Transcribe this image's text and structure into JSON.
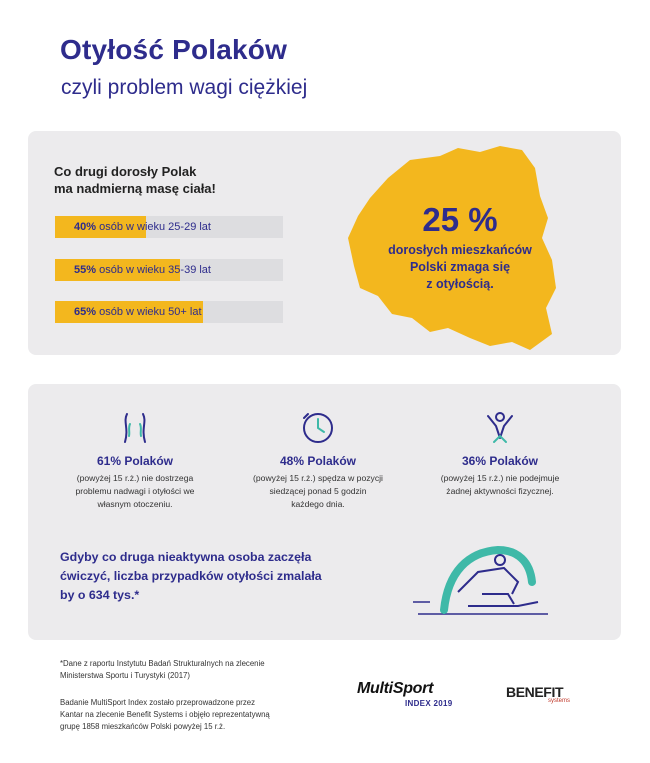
{
  "header": {
    "title": "Otyłość Polaków",
    "subtitle": "czyli problem wagi ciężkiej"
  },
  "top_panel": {
    "lead_line1": "Co drugi dorosły Polak",
    "lead_line2": "ma nadmierną masę ciała!",
    "bars": [
      {
        "percent": "40%",
        "rest": " osób w wieku 25-29 lat",
        "fill_fraction": 0.4
      },
      {
        "percent": "55%",
        "rest": " osób w wieku 35-39 lat",
        "fill_fraction": 0.55
      },
      {
        "percent": "65%",
        "rest": " osób w wieku  50+ lat",
        "fill_fraction": 0.65
      }
    ],
    "highlight_value": "25 %",
    "highlight_line1": "dorosłych mieszkańców",
    "highlight_line2": "Polski zmaga się",
    "highlight_line3": "z otyłością."
  },
  "stats": [
    {
      "icon": "body-silhouette-icon",
      "head": "61% Polaków",
      "desc1": "(powyżej 15 r.ż.) nie dostrzega",
      "desc2": "problemu nadwagi i otyłości we",
      "desc3": "własnym otoczeniu."
    },
    {
      "icon": "clock-icon",
      "head": "48% Polaków",
      "desc1": "(powyżej 15 r.ż.) spędza w pozycji",
      "desc2": "siedzącej ponad 5 godzin",
      "desc3": "każdego dnia."
    },
    {
      "icon": "person-arms-up-icon",
      "head": "36% Polaków",
      "desc1": "(powyżej 15 r.ż.) nie podejmuje",
      "desc2": "żadnej aktywności fizycznej.",
      "desc3": ""
    }
  ],
  "bottom_text": {
    "line1": "Gdyby co druga nieaktywna osoba zaczęła",
    "line2": "ćwiczyć, liczba przypadków otyłości zmalała",
    "line3": "by o 634 tys.*"
  },
  "footnotes": {
    "note1_line1": "*Dane z raportu Instytutu Badań Strukturalnych na zlecenie",
    "note1_line2": "Ministerstwa Sportu i Turystyki (2017)",
    "note2_line1": "Badanie MultiSport Index zostało przeprowadzone przez",
    "note2_line2": "Kantar na zlecenie Benefit Systems i objęło reprezentatywną",
    "note2_line3": "grupę 1858 mieszkańców Polski powyżej 15 r.ż."
  },
  "logos": {
    "multisport": "MultiSport",
    "multisport_sub": "INDEX 2019",
    "benefit": "BENEFIT",
    "benefit_sub": "systems"
  },
  "colors": {
    "navy": "#2e2c8c",
    "yellow": "#f3b71e",
    "teal": "#3fb9a8",
    "panel": "#ecebed"
  }
}
